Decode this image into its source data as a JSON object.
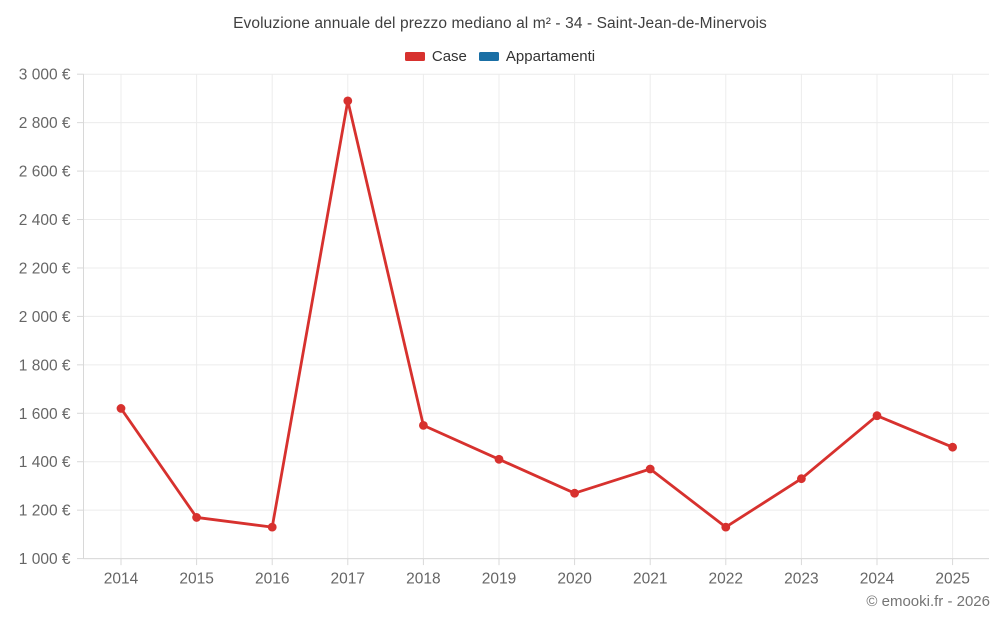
{
  "header": {
    "title": "Evoluzione annuale del prezzo mediano al m² - 34 - Saint-Jean-de-Minervois"
  },
  "legend": {
    "items": [
      {
        "label": "Case",
        "color": "#d7312e"
      },
      {
        "label": "Appartamenti",
        "color": "#1a6fa5"
      }
    ]
  },
  "footer": {
    "credit": "© emooki.fr - 2026"
  },
  "colors": {
    "grid": "#ececec",
    "axis": "#d8d8d8",
    "tick_label": "#666666",
    "title": "#3f3f3f"
  },
  "chart_data": {
    "type": "line",
    "title": "Evoluzione annuale del prezzo mediano al m² - 34 - Saint-Jean-de-Minervois",
    "categories": [
      "2014",
      "2015",
      "2016",
      "2017",
      "2018",
      "2019",
      "2020",
      "2021",
      "2022",
      "2023",
      "2024",
      "2025"
    ],
    "series": [
      {
        "name": "Case",
        "color": "#d7312e",
        "values": [
          1620,
          1170,
          1130,
          2890,
          1550,
          1410,
          1270,
          1370,
          1130,
          1330,
          1590,
          1460
        ]
      },
      {
        "name": "Appartamenti",
        "color": "#1a6fa5",
        "values": []
      }
    ],
    "ylim": [
      1000,
      3000
    ],
    "ytick_step": 200,
    "y_unit": "€",
    "grid": true,
    "legend_position": "top"
  }
}
